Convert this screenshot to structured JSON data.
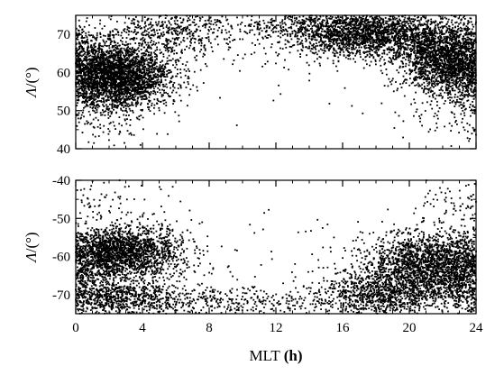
{
  "chart_data": [
    {
      "type": "scatter",
      "title": "",
      "xlabel": "",
      "ylabel_symbol": "Λ",
      "ylabel_unit": "/(°)",
      "xlim": [
        0,
        24
      ],
      "ylim": [
        40,
        75
      ],
      "xticks": [
        0,
        4,
        8,
        12,
        16,
        20,
        24
      ],
      "yticks": [
        40,
        50,
        60,
        70
      ],
      "ytick_labels": [
        "40",
        "50",
        "60",
        "70"
      ],
      "grid": false,
      "legend": "none",
      "marker_color": "#000000",
      "density_clusters": [
        {
          "mlt_center": 2.3,
          "mlt_spread": 1.7,
          "lat_center": 59,
          "lat_spread": 4.2,
          "points": 3200
        },
        {
          "mlt_center": 17.5,
          "mlt_spread": 2.3,
          "lat_center": 70,
          "lat_spread": 3.0,
          "points": 2000
        },
        {
          "mlt_center": 22.3,
          "mlt_spread": 1.5,
          "lat_center": 64,
          "lat_spread": 4.5,
          "points": 2200
        },
        {
          "mlt_center": 5.5,
          "mlt_spread": 2.0,
          "lat_center": 70,
          "lat_spread": 3.5,
          "points": 500
        },
        {
          "mlt_center": 13.0,
          "mlt_spread": 3.0,
          "lat_center": 72.5,
          "lat_spread": 2.0,
          "points": 350
        },
        {
          "mlt_center": 1.5,
          "mlt_spread": 2.0,
          "lat_center": 48,
          "lat_spread": 3.5,
          "points": 120
        },
        {
          "mlt_center": 22.0,
          "mlt_spread": 2.0,
          "lat_center": 50,
          "lat_spread": 4.0,
          "points": 80
        },
        {
          "mlt_center": 12.0,
          "mlt_spread": 6.0,
          "lat_center": 58,
          "lat_spread": 8.0,
          "points": 40
        }
      ]
    },
    {
      "type": "scatter",
      "title": "",
      "xlabel_text": "MLT",
      "xlabel_unit": "(h)",
      "ylabel_symbol": "Λ",
      "ylabel_unit": "/(°)",
      "xlim": [
        0,
        24
      ],
      "ylim": [
        -75,
        -40
      ],
      "xticks": [
        0,
        4,
        8,
        12,
        16,
        20,
        24
      ],
      "xtick_labels": [
        "0",
        "4",
        "8",
        "12",
        "16",
        "20",
        "24"
      ],
      "yticks": [
        -70,
        -60,
        -50,
        -40
      ],
      "ytick_labels": [
        "-70",
        "-60",
        "-50",
        "-40"
      ],
      "grid": false,
      "legend": "none",
      "marker_color": "#000000",
      "density_clusters": [
        {
          "mlt_center": 2.8,
          "mlt_spread": 1.8,
          "lat_center": -59,
          "lat_spread": 3.5,
          "points": 2000
        },
        {
          "mlt_center": 2.5,
          "mlt_spread": 2.2,
          "lat_center": -71,
          "lat_spread": 2.5,
          "points": 900
        },
        {
          "mlt_center": 21.5,
          "mlt_spread": 2.2,
          "lat_center": -63,
          "lat_spread": 4.5,
          "points": 2600
        },
        {
          "mlt_center": 18.0,
          "mlt_spread": 1.8,
          "lat_center": -70,
          "lat_spread": 3.0,
          "points": 800
        },
        {
          "mlt_center": 10.0,
          "mlt_spread": 3.0,
          "lat_center": -72,
          "lat_spread": 2.0,
          "points": 300
        },
        {
          "mlt_center": 2.0,
          "mlt_spread": 2.0,
          "lat_center": -46,
          "lat_spread": 3.0,
          "points": 80
        },
        {
          "mlt_center": 22.5,
          "mlt_spread": 1.2,
          "lat_center": -47,
          "lat_spread": 4.0,
          "points": 60
        },
        {
          "mlt_center": 12.0,
          "mlt_spread": 5.0,
          "lat_center": -60,
          "lat_spread": 6.0,
          "points": 60
        }
      ]
    }
  ]
}
